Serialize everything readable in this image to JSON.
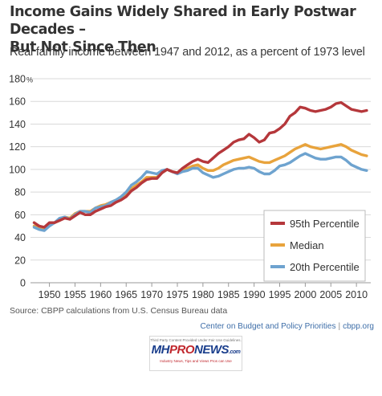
{
  "title_line1": "Income Gains Widely Shared in Early Postwar Decades –",
  "title_line2": "But Not Since Then",
  "subtitle": "Real family income between 1947 and 2012, as a percent of 1973 level",
  "source": "Source: CBPP calculations from U.S. Census Bureau data",
  "credit": {
    "org": "Center on Budget and Policy Priorities",
    "site": "cbpp.org"
  },
  "badge": {
    "notice": "Third Party Content Provided Under Fair Use Guidelines.",
    "logo_mh": "MH",
    "logo_pro": "PRO",
    "logo_news": "NEWS",
    "logo_com": ".com",
    "tagline": "Industry News, Tips and Views Pros can Use"
  },
  "chart_data": {
    "type": "line",
    "x": [
      1947,
      1948,
      1949,
      1950,
      1951,
      1952,
      1953,
      1954,
      1955,
      1956,
      1957,
      1958,
      1959,
      1960,
      1961,
      1962,
      1963,
      1964,
      1965,
      1966,
      1967,
      1968,
      1969,
      1970,
      1971,
      1972,
      1973,
      1974,
      1975,
      1976,
      1977,
      1978,
      1979,
      1980,
      1981,
      1982,
      1983,
      1984,
      1985,
      1986,
      1987,
      1988,
      1989,
      1990,
      1991,
      1992,
      1993,
      1994,
      1995,
      1996,
      1997,
      1998,
      1999,
      2000,
      2001,
      2002,
      2003,
      2004,
      2005,
      2006,
      2007,
      2008,
      2009,
      2010,
      2011,
      2012
    ],
    "series": [
      {
        "name": "95th Percentile",
        "color": "#b5373b",
        "values": [
          53,
          50,
          49,
          53,
          53,
          55,
          57,
          56,
          59,
          62,
          60,
          60,
          63,
          65,
          67,
          68,
          71,
          73,
          76,
          81,
          84,
          88,
          91,
          92,
          92,
          97,
          100,
          98,
          97,
          101,
          104,
          107,
          109,
          107,
          106,
          110,
          114,
          117,
          120,
          124,
          126,
          127,
          131,
          128,
          124,
          126,
          132,
          133,
          136,
          140,
          147,
          150,
          155,
          154,
          152,
          151,
          152,
          153,
          155,
          158,
          159,
          156,
          153,
          152,
          151,
          152
        ]
      },
      {
        "name": "Median",
        "color": "#e8a33c",
        "values": [
          50,
          48,
          48,
          51,
          53,
          55,
          58,
          57,
          61,
          63,
          63,
          63,
          66,
          68,
          69,
          71,
          73,
          75,
          79,
          83,
          86,
          89,
          93,
          93,
          93,
          97,
          100,
          98,
          97,
          100,
          101,
          103,
          104,
          101,
          99,
          99,
          101,
          104,
          106,
          108,
          109,
          110,
          111,
          109,
          107,
          106,
          106,
          108,
          110,
          112,
          115,
          118,
          120,
          122,
          120,
          119,
          118,
          119,
          120,
          121,
          122,
          120,
          117,
          115,
          113,
          112
        ]
      },
      {
        "name": "20th Percentile",
        "color": "#6ea3cf",
        "values": [
          49,
          47,
          46,
          50,
          53,
          57,
          58,
          56,
          60,
          63,
          63,
          62,
          66,
          67,
          68,
          71,
          73,
          76,
          80,
          86,
          89,
          93,
          98,
          97,
          96,
          99,
          100,
          98,
          96,
          98,
          99,
          101,
          101,
          97,
          95,
          93,
          94,
          96,
          98,
          100,
          101,
          101,
          102,
          101,
          98,
          96,
          96,
          99,
          103,
          104,
          106,
          109,
          112,
          114,
          112,
          110,
          109,
          109,
          110,
          111,
          111,
          108,
          104,
          102,
          100,
          99
        ]
      }
    ],
    "ylim": [
      0,
      180
    ],
    "xlim": [
      1946.3,
      2012.8
    ],
    "y_ticks": [
      "0",
      "20",
      "40",
      "60",
      "80",
      "100",
      "120",
      "140",
      "160",
      "180"
    ],
    "y_unit": "%",
    "x_ticks": [
      "1950",
      "1955",
      "1960",
      "1965",
      "1970",
      "1975",
      "1980",
      "1985",
      "1990",
      "1995",
      "2000",
      "2005",
      "2010"
    ],
    "grid": "horizontal",
    "legend_position": "right-middle"
  }
}
